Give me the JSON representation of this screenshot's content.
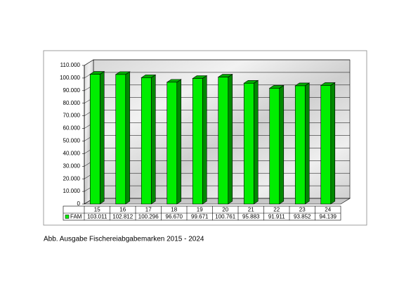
{
  "chart_data": {
    "type": "bar",
    "caption": "Abb. Ausgabe Fischereiabgabemarken 2015 - 2024",
    "categories": [
      "15",
      "16",
      "17",
      "18",
      "19",
      "20",
      "21",
      "22",
      "23",
      "24"
    ],
    "series": [
      {
        "name": "FAM",
        "color": "#00ee00",
        "values": [
          103011,
          102812,
          100296,
          96670,
          99671,
          100761,
          95883,
          91911,
          93852,
          94139
        ],
        "value_labels": [
          "103.011",
          "102.812",
          "100.296",
          "96.670",
          "99.671",
          "100.761",
          "95.883",
          "91.911",
          "93.852",
          "94.139"
        ]
      }
    ],
    "ylim": [
      0,
      110000
    ],
    "yticks": [
      0,
      {
        "value": 10000,
        "label": "10.000"
      },
      {
        "value": 20000,
        "label": "20.000"
      },
      {
        "value": 30000,
        "label": "30.000"
      },
      {
        "value": 40000,
        "label": "40.000"
      },
      {
        "value": 50000,
        "label": "50.000"
      },
      {
        "value": 60000,
        "label": "60.000"
      },
      {
        "value": 70000,
        "label": "70.000"
      },
      {
        "value": 80000,
        "label": "80.000"
      },
      {
        "value": 90000,
        "label": "90.000"
      },
      {
        "value": 100000,
        "label": "100.000"
      },
      {
        "value": 110000,
        "label": "110.000"
      }
    ],
    "grid": true
  }
}
